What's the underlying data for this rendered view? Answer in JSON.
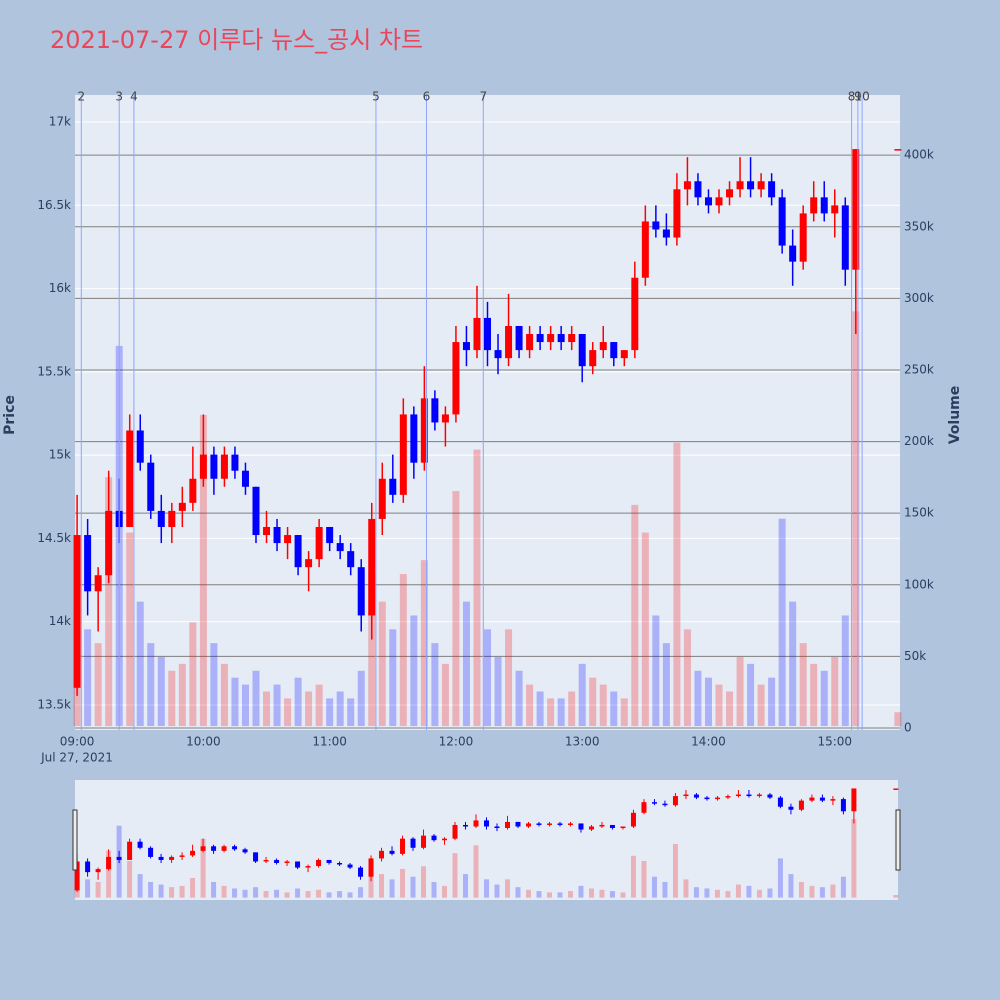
{
  "chart_data": {
    "type": "candlestick",
    "title": "2021-07-27 이루다 뉴스_공시 차트",
    "y_label": "Price",
    "y2_label": "Volume",
    "date_label": "Jul 27, 2021",
    "increasing_color": "#ff0000",
    "decreasing_color": "#0000ff",
    "news_color": "#8fa4ff",
    "x": [
      "09:00",
      "09:05",
      "09:10",
      "09:15",
      "09:20",
      "09:25",
      "09:30",
      "09:35",
      "09:40",
      "09:45",
      "09:50",
      "09:55",
      "10:00",
      "10:05",
      "10:10",
      "10:15",
      "10:20",
      "10:25",
      "10:30",
      "10:35",
      "10:40",
      "10:45",
      "10:50",
      "10:55",
      "11:00",
      "11:05",
      "11:10",
      "11:15",
      "11:20",
      "11:25",
      "11:30",
      "11:35",
      "11:40",
      "11:45",
      "11:50",
      "11:55",
      "12:00",
      "12:05",
      "12:10",
      "12:15",
      "12:20",
      "12:25",
      "12:30",
      "12:35",
      "12:40",
      "12:45",
      "12:50",
      "12:55",
      "13:00",
      "13:05",
      "13:10",
      "13:15",
      "13:20",
      "13:25",
      "13:30",
      "13:35",
      "13:40",
      "13:45",
      "13:50",
      "13:55",
      "14:00",
      "14:05",
      "14:10",
      "14:15",
      "14:20",
      "14:25",
      "14:30",
      "14:35",
      "14:40",
      "14:45",
      "14:50",
      "14:55",
      "15:00",
      "15:05",
      "15:10",
      "15:30"
    ],
    "open": [
      13600,
      14550,
      14200,
      14300,
      14700,
      14600,
      15200,
      15000,
      14700,
      14600,
      14700,
      14750,
      14900,
      15050,
      14900,
      15050,
      14950,
      14850,
      14550,
      14600,
      14500,
      14550,
      14350,
      14400,
      14600,
      14500,
      14450,
      14350,
      14050,
      14650,
      14900,
      14800,
      15300,
      15000,
      15400,
      15250,
      15300,
      15750,
      15700,
      15900,
      15700,
      15650,
      15850,
      15700,
      15800,
      15750,
      15800,
      15750,
      15800,
      15600,
      15700,
      15750,
      15650,
      15700,
      16150,
      16500,
      16450,
      16400,
      16700,
      16750,
      16650,
      16600,
      16650,
      16700,
      16750,
      16700,
      16750,
      16650,
      16350,
      16250,
      16550,
      16650,
      16550,
      16600,
      16200,
      16950
    ],
    "high": [
      14800,
      14650,
      14350,
      14950,
      14900,
      15300,
      15300,
      15050,
      14800,
      14750,
      14850,
      15100,
      15300,
      15100,
      15100,
      15100,
      15000,
      14850,
      14700,
      14650,
      14600,
      14550,
      14450,
      14650,
      14600,
      14550,
      14500,
      14400,
      14750,
      15000,
      15050,
      15400,
      15350,
      15600,
      15450,
      15350,
      15850,
      15850,
      16100,
      16000,
      15800,
      16050,
      15850,
      15850,
      15850,
      15850,
      15850,
      15850,
      15800,
      15750,
      15850,
      15750,
      15700,
      16250,
      16600,
      16600,
      16550,
      16800,
      16900,
      16800,
      16700,
      16700,
      16750,
      16900,
      16900,
      16800,
      16800,
      16700,
      16450,
      16600,
      16750,
      16750,
      16700,
      16650,
      16950,
      16950
    ],
    "low": [
      13550,
      14050,
      13950,
      14250,
      14500,
      14600,
      14950,
      14650,
      14500,
      14500,
      14600,
      14700,
      14850,
      14800,
      14850,
      14900,
      14800,
      14500,
      14500,
      14450,
      14400,
      14300,
      14200,
      14350,
      14450,
      14400,
      14300,
      13950,
      13900,
      14550,
      14750,
      14750,
      14900,
      14950,
      15200,
      15100,
      15250,
      15600,
      15650,
      15600,
      15550,
      15600,
      15650,
      15650,
      15700,
      15700,
      15700,
      15700,
      15500,
      15550,
      15650,
      15600,
      15600,
      15650,
      16100,
      16400,
      16350,
      16350,
      16600,
      16600,
      16550,
      16550,
      16600,
      16650,
      16650,
      16650,
      16600,
      16300,
      16100,
      16200,
      16500,
      16500,
      16400,
      16100,
      15800,
      16950
    ],
    "close": [
      14550,
      14200,
      14300,
      14700,
      14600,
      15200,
      15000,
      14700,
      14600,
      14700,
      14750,
      14900,
      15050,
      14900,
      15050,
      14950,
      14850,
      14550,
      14600,
      14500,
      14550,
      14350,
      14400,
      14600,
      14500,
      14450,
      14350,
      14050,
      14650,
      14900,
      14800,
      15300,
      15000,
      15400,
      15250,
      15300,
      15750,
      15700,
      15900,
      15700,
      15650,
      15850,
      15700,
      15800,
      15750,
      15800,
      15750,
      15800,
      15600,
      15700,
      15750,
      15650,
      15700,
      16150,
      16500,
      16450,
      16400,
      16700,
      16750,
      16650,
      16600,
      16650,
      16700,
      16750,
      16700,
      16750,
      16650,
      16350,
      16250,
      16550,
      16650,
      16550,
      16600,
      16200,
      16950,
      16950
    ],
    "volume": [
      90000,
      70000,
      60000,
      180000,
      275000,
      140000,
      90000,
      60000,
      50000,
      40000,
      45000,
      75000,
      225000,
      60000,
      45000,
      35000,
      30000,
      40000,
      25000,
      30000,
      20000,
      35000,
      25000,
      30000,
      20000,
      25000,
      20000,
      40000,
      110000,
      90000,
      70000,
      110000,
      80000,
      120000,
      60000,
      45000,
      170000,
      90000,
      200000,
      70000,
      50000,
      70000,
      40000,
      30000,
      25000,
      20000,
      20000,
      25000,
      45000,
      35000,
      30000,
      25000,
      20000,
      160000,
      140000,
      80000,
      60000,
      205000,
      70000,
      40000,
      35000,
      30000,
      25000,
      50000,
      45000,
      30000,
      35000,
      150000,
      90000,
      60000,
      45000,
      40000,
      50000,
      80000,
      300000,
      10000
    ],
    "xlim": [
      "08:59",
      "15:31"
    ],
    "xticks": [
      "09:00",
      "10:00",
      "11:00",
      "12:00",
      "13:00",
      "14:00",
      "15:00"
    ],
    "ylim": [
      13350,
      17162
    ],
    "yticks": [
      {
        "value": 13500,
        "label": "13.5k"
      },
      {
        "value": 14000,
        "label": "14k"
      },
      {
        "value": 14500,
        "label": "14.5k"
      },
      {
        "value": 15000,
        "label": "15k"
      },
      {
        "value": 15500,
        "label": "15.5k"
      },
      {
        "value": 16000,
        "label": "16k"
      },
      {
        "value": 16500,
        "label": "16.5k"
      },
      {
        "value": 17000,
        "label": "17k"
      }
    ],
    "y2lim": [
      -1400,
      442000
    ],
    "y2ticks": [
      0,
      {
        "value": 50000,
        "label": "50k"
      },
      {
        "value": 100000,
        "label": "100k"
      },
      {
        "value": 150000,
        "label": "150k"
      },
      {
        "value": 200000,
        "label": "200k"
      },
      {
        "value": 250000,
        "label": "250k"
      },
      {
        "value": 300000,
        "label": "300k"
      },
      {
        "value": 350000,
        "label": "350k"
      },
      {
        "value": 400000,
        "label": "400k"
      }
    ],
    "news": [
      {
        "label": "2",
        "x": "09:02"
      },
      {
        "label": "3",
        "x": "09:20"
      },
      {
        "label": "4",
        "x": "09:27"
      },
      {
        "label": "5",
        "x": "11:22"
      },
      {
        "label": "6",
        "x": "11:46"
      },
      {
        "label": "7",
        "x": "12:13"
      },
      {
        "label": "8",
        "x": "15:08"
      },
      {
        "label": "9",
        "x": "15:11"
      },
      {
        "label": "10",
        "x": "15:13"
      }
    ],
    "grid": true,
    "rangeslider": true
  }
}
